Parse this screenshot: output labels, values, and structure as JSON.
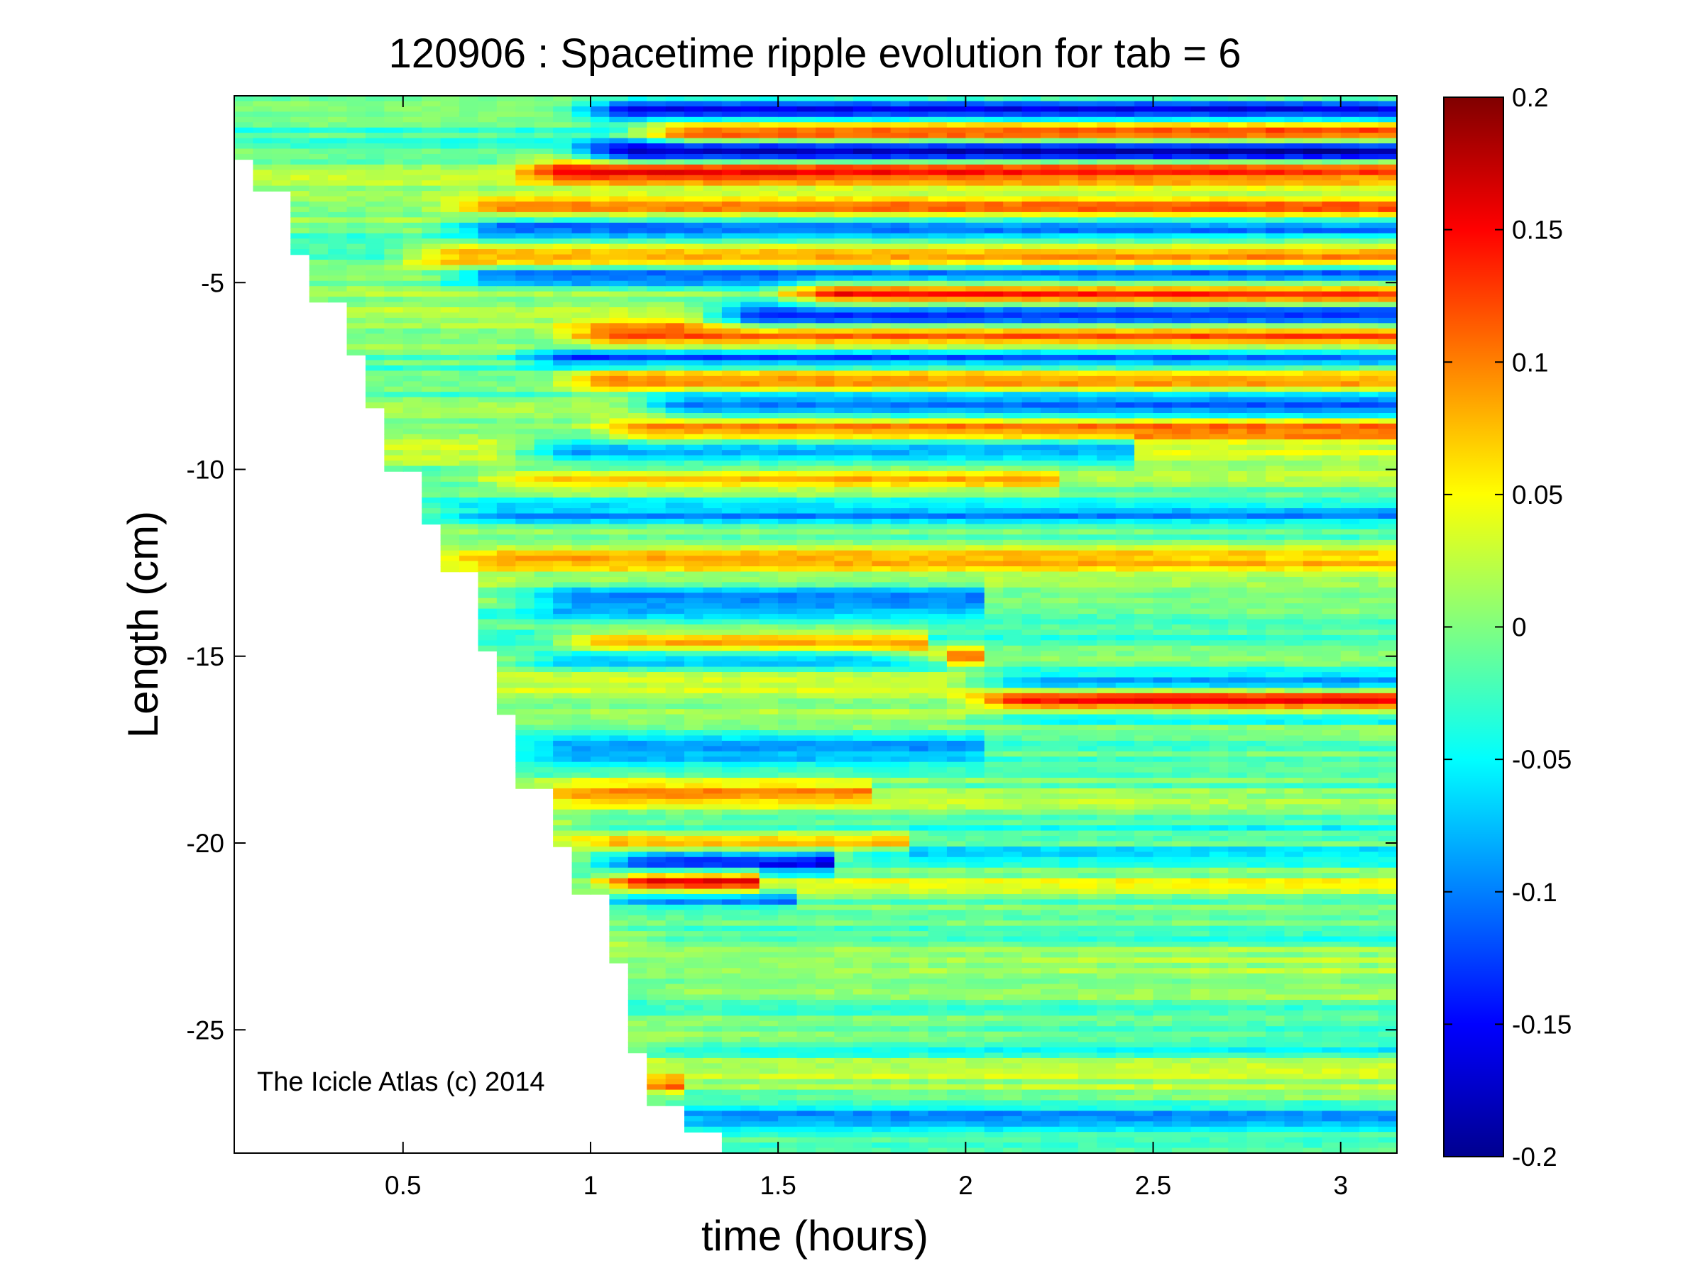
{
  "chart_data": {
    "type": "heatmap",
    "title": "120906 : Spacetime ripple evolution for tab = 6",
    "xlabel": "time (hours)",
    "ylabel": "Length (cm)",
    "xlim": [
      0.05,
      3.15
    ],
    "ylim": [
      -28.3,
      0.0
    ],
    "x_ticks": [
      0.5,
      1,
      1.5,
      2,
      2.5,
      3
    ],
    "x_tick_labels": [
      "0.5",
      "1",
      "1.5",
      "2",
      "2.5",
      "3"
    ],
    "y_ticks": [
      -5,
      -10,
      -15,
      -20,
      -25
    ],
    "y_tick_labels": [
      "-5",
      "-10",
      "-15",
      "-20",
      "-25"
    ],
    "colormap": "jet",
    "clim": [
      -0.2,
      0.2
    ],
    "colorbar_ticks": [
      0.2,
      0.15,
      0.1,
      0.05,
      0,
      -0.05,
      -0.1,
      -0.15,
      -0.2
    ],
    "colorbar_tick_labels": [
      "0.2",
      "0.15",
      "0.1",
      "0.05",
      "0",
      "-0.05",
      "-0.1",
      "-0.15",
      "-0.2"
    ],
    "grid": false,
    "boundary": [
      {
        "t": 0.05,
        "length": -1.7
      },
      {
        "t": 0.12,
        "length": -2.6
      },
      {
        "t": 0.19,
        "length": -4.3
      },
      {
        "t": 0.26,
        "length": -5.5
      },
      {
        "t": 0.33,
        "length": -6.9
      },
      {
        "t": 0.4,
        "length": -8.4
      },
      {
        "t": 0.47,
        "length": -10.1
      },
      {
        "t": 0.54,
        "length": -11.5
      },
      {
        "t": 0.61,
        "length": -12.8
      },
      {
        "t": 0.68,
        "length": -14.9
      },
      {
        "t": 0.75,
        "length": -16.5
      },
      {
        "t": 0.82,
        "length": -18.5
      },
      {
        "t": 0.89,
        "length": -20.1
      },
      {
        "t": 0.96,
        "length": -21.3
      },
      {
        "t": 1.03,
        "length": -23.2
      },
      {
        "t": 1.1,
        "length": -25.6
      },
      {
        "t": 1.17,
        "length": -27.0
      },
      {
        "t": 1.24,
        "length": -27.8
      },
      {
        "t": 1.33,
        "length": -28.3
      }
    ],
    "features": [
      {
        "t_start": 0.95,
        "t_end": 3.15,
        "length": -0.4,
        "value": -0.16,
        "width": 0.3
      },
      {
        "t_start": 1.1,
        "t_end": 3.15,
        "length": -1.0,
        "value": 0.16,
        "width": 0.3
      },
      {
        "t_start": 0.95,
        "t_end": 3.15,
        "length": -1.5,
        "value": -0.18,
        "width": 0.3
      },
      {
        "t_start": 0.8,
        "t_end": 3.15,
        "length": -2.0,
        "value": 0.14,
        "width": 0.35
      },
      {
        "t_start": 0.6,
        "t_end": 3.15,
        "length": -3.0,
        "value": 0.1,
        "width": 0.3
      },
      {
        "t_start": 0.6,
        "t_end": 3.15,
        "length": -3.5,
        "value": -0.12,
        "width": 0.3
      },
      {
        "t_start": 0.5,
        "t_end": 3.15,
        "length": -4.3,
        "value": 0.12,
        "width": 0.35
      },
      {
        "t_start": 0.6,
        "t_end": 3.15,
        "length": -4.8,
        "value": -0.12,
        "width": 0.3
      },
      {
        "t_start": 1.5,
        "t_end": 3.15,
        "length": -5.3,
        "value": 0.15,
        "width": 0.35
      },
      {
        "t_start": 1.3,
        "t_end": 3.15,
        "length": -5.9,
        "value": -0.18,
        "width": 0.35
      },
      {
        "t_start": 0.9,
        "t_end": 3.15,
        "length": -6.4,
        "value": 0.12,
        "width": 0.35
      },
      {
        "t_start": 0.8,
        "t_end": 3.15,
        "length": -7.0,
        "value": -0.12,
        "width": 0.3
      },
      {
        "t_start": 0.9,
        "t_end": 3.15,
        "length": -7.6,
        "value": 0.11,
        "width": 0.35
      },
      {
        "t_start": 1.1,
        "t_end": 3.15,
        "length": -8.3,
        "value": -0.12,
        "width": 0.35
      },
      {
        "t_start": 1.0,
        "t_end": 3.15,
        "length": -8.9,
        "value": 0.11,
        "width": 0.35
      },
      {
        "t_start": 0.8,
        "t_end": 2.4,
        "length": -9.5,
        "value": -0.12,
        "width": 0.35
      },
      {
        "t_start": 0.7,
        "t_end": 2.2,
        "length": -10.3,
        "value": 0.07,
        "width": 0.3
      },
      {
        "t_start": 0.6,
        "t_end": 3.15,
        "length": -11.2,
        "value": -0.07,
        "width": 0.3
      },
      {
        "t_start": 0.6,
        "t_end": 3.15,
        "length": -12.4,
        "value": 0.06,
        "width": 0.3
      },
      {
        "t_start": 0.8,
        "t_end": 2.0,
        "length": -13.5,
        "value": -0.1,
        "width": 0.4
      },
      {
        "t_start": 0.9,
        "t_end": 1.85,
        "length": -14.6,
        "value": 0.12,
        "width": 0.25
      },
      {
        "t_start": 0.8,
        "t_end": 1.9,
        "length": -15.1,
        "value": -0.08,
        "width": 0.25
      },
      {
        "t_start": 1.8,
        "t_end": 2.0,
        "length": -15.0,
        "value": 0.1,
        "width": 0.25
      },
      {
        "t_start": 2.0,
        "t_end": 3.15,
        "length": -15.7,
        "value": -0.12,
        "width": 0.28
      },
      {
        "t_start": 2.0,
        "t_end": 3.15,
        "length": -16.2,
        "value": 0.15,
        "width": 0.28
      },
      {
        "t_start": 2.0,
        "t_end": 3.15,
        "length": -16.6,
        "value": -0.08,
        "width": 0.25
      },
      {
        "t_start": 0.8,
        "t_end": 2.0,
        "length": -17.5,
        "value": -0.07,
        "width": 0.35
      },
      {
        "t_start": 0.85,
        "t_end": 1.7,
        "length": -18.6,
        "value": 0.08,
        "width": 0.3
      },
      {
        "t_start": 0.9,
        "t_end": 3.15,
        "length": -19.6,
        "value": -0.06,
        "width": 0.3
      },
      {
        "t_start": 0.9,
        "t_end": 1.8,
        "length": -20.0,
        "value": 0.09,
        "width": 0.3
      },
      {
        "t_start": 1.0,
        "t_end": 1.6,
        "length": -20.5,
        "value": -0.15,
        "width": 0.3
      },
      {
        "t_start": 1.6,
        "t_end": 3.15,
        "length": -20.3,
        "value": -0.07,
        "width": 0.25
      },
      {
        "t_start": 1.0,
        "t_end": 1.4,
        "length": -21.0,
        "value": 0.13,
        "width": 0.3
      },
      {
        "t_start": 1.0,
        "t_end": 3.15,
        "length": -21.1,
        "value": 0.06,
        "width": 0.25
      },
      {
        "t_start": 1.0,
        "t_end": 1.5,
        "length": -21.5,
        "value": -0.09,
        "width": 0.25
      },
      {
        "t_start": 1.05,
        "t_end": 3.15,
        "length": -22.5,
        "value": -0.05,
        "width": 0.3
      },
      {
        "t_start": 1.1,
        "t_end": 3.15,
        "length": -24.0,
        "value": 0.04,
        "width": 0.3
      },
      {
        "t_start": 1.1,
        "t_end": 3.15,
        "length": -25.5,
        "value": -0.05,
        "width": 0.3
      },
      {
        "t_start": 1.15,
        "t_end": 3.15,
        "length": -27.3,
        "value": -0.07,
        "width": 0.3
      },
      {
        "t_start": 1.1,
        "t_end": 1.2,
        "length": -26.5,
        "value": 0.12,
        "width": 0.25
      }
    ],
    "annotation": "The Icicle Atlas (c) 2014"
  }
}
